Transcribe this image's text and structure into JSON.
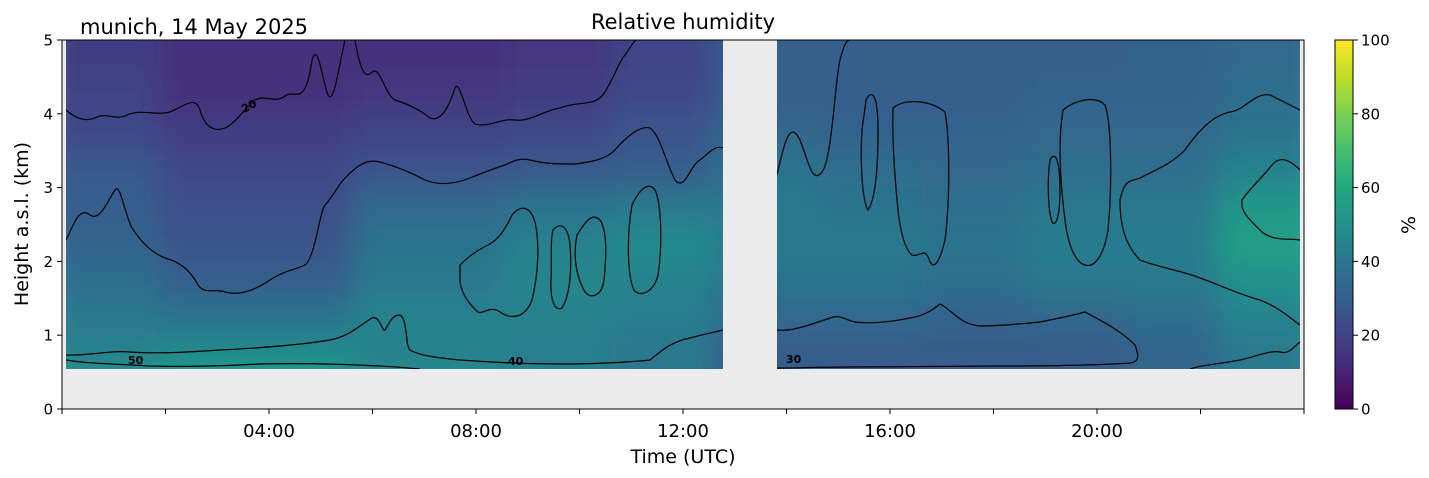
{
  "chart_data": {
    "type": "heatmap",
    "title": "Relative humidity",
    "subtitle": "munich, 14 May 2025",
    "xlabel": "Time (UTC)",
    "ylabel": "Height a.s.l. (km)",
    "xlim_hours": [
      0,
      24
    ],
    "ylim_km": [
      0,
      5
    ],
    "x_ticks": [
      "04:00",
      "08:00",
      "12:00",
      "16:00",
      "20:00"
    ],
    "y_ticks": [
      "0",
      "1",
      "2",
      "3",
      "4",
      "5"
    ],
    "colorbar": {
      "label": "%",
      "range": [
        0,
        100
      ],
      "ticks": [
        "0",
        "20",
        "40",
        "60",
        "80",
        "100"
      ],
      "colormap": "viridis"
    },
    "missing_data": {
      "below_km": 0.55,
      "gap_hours": [
        12.8,
        13.8
      ]
    },
    "contour_levels": [
      20,
      30,
      40,
      50
    ],
    "contour_labels": [
      "20",
      "50",
      "40",
      "30"
    ],
    "rh_profile_samples": {
      "heights_km": [
        0.6,
        1.0,
        1.5,
        2.0,
        2.5,
        3.0,
        3.5,
        4.0,
        4.5,
        5.0
      ],
      "times_hours": [
        0.5,
        4,
        8,
        10,
        12,
        14,
        16,
        18,
        20,
        22,
        23.5
      ],
      "values": [
        [
          52,
          55,
          48,
          44,
          40,
          32,
          30,
          30,
          32,
          35,
          42
        ],
        [
          44,
          48,
          44,
          42,
          40,
          28,
          28,
          28,
          28,
          32,
          40
        ],
        [
          40,
          38,
          44,
          44,
          42,
          34,
          34,
          32,
          33,
          36,
          44
        ],
        [
          36,
          30,
          40,
          45,
          44,
          38,
          38,
          36,
          40,
          40,
          50
        ],
        [
          32,
          26,
          38,
          44,
          48,
          40,
          40,
          38,
          42,
          42,
          56
        ],
        [
          30,
          24,
          34,
          38,
          40,
          40,
          38,
          36,
          40,
          40,
          52
        ],
        [
          28,
          22,
          26,
          28,
          30,
          38,
          36,
          34,
          36,
          36,
          44
        ],
        [
          22,
          18,
          20,
          22,
          26,
          34,
          32,
          32,
          34,
          34,
          38
        ],
        [
          20,
          14,
          16,
          18,
          22,
          30,
          30,
          30,
          32,
          32,
          36
        ],
        [
          18,
          14,
          14,
          16,
          20,
          30,
          30,
          30,
          30,
          32,
          34
        ]
      ]
    }
  },
  "colors": {
    "missing": "#ebebeb",
    "contour": "#000000"
  }
}
